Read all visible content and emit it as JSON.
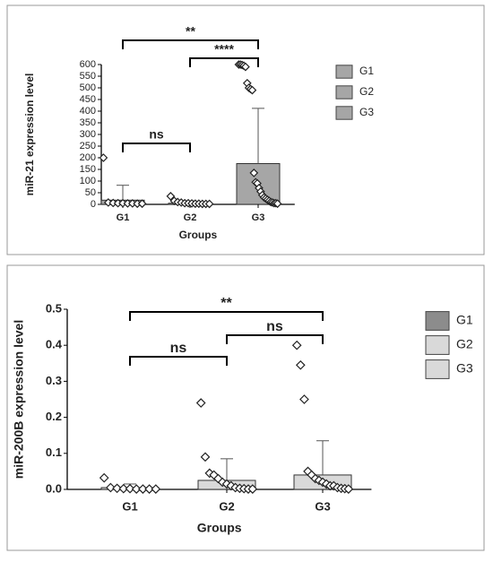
{
  "chart_data": [
    {
      "type": "bar",
      "ylabel": "miR-21 expression level",
      "xlabel": "Groups",
      "categories": [
        "G1",
        "G2",
        "G3"
      ],
      "values": [
        18,
        5,
        175
      ],
      "errors": [
        64,
        10,
        237
      ],
      "points": [
        [
          200,
          8,
          6,
          5,
          5,
          4,
          4,
          3,
          3
        ],
        [
          35,
          15,
          10,
          8,
          5,
          5,
          4,
          3,
          3,
          2,
          2,
          2
        ],
        [
          600,
          600,
          598,
          595,
          590,
          520,
          500,
          495,
          490,
          135,
          95,
          90,
          70,
          55,
          40,
          30,
          25,
          20,
          15,
          10,
          8,
          5,
          5,
          3
        ]
      ],
      "color": "#a6a6a6",
      "legend_colors": [
        "#a6a6a6",
        "#a6a6a6",
        "#a6a6a6"
      ],
      "ylim": [
        0,
        600
      ],
      "yticks": [
        0,
        50,
        100,
        150,
        200,
        250,
        300,
        350,
        400,
        450,
        500,
        550,
        600
      ],
      "annotations": [
        {
          "text": "**",
          "groups": [
            "G1",
            "G3"
          ]
        },
        {
          "text": "****",
          "groups": [
            "G2",
            "G3"
          ]
        },
        {
          "text": "ns",
          "groups": [
            "G1",
            "G2"
          ]
        }
      ]
    },
    {
      "type": "bar",
      "ylabel": "miR-200B expression level",
      "xlabel": "Groups",
      "categories": [
        "G1",
        "G2",
        "G3"
      ],
      "values": [
        0.005,
        0.025,
        0.04
      ],
      "errors": [
        0.01,
        0.06,
        0.095
      ],
      "points": [
        [
          0.032,
          0.005,
          0.003,
          0.002,
          0.002,
          0.001,
          0.001,
          0.001,
          0.001
        ],
        [
          0.24,
          0.09,
          0.045,
          0.04,
          0.03,
          0.02,
          0.015,
          0.01,
          0.005,
          0.003,
          0.002,
          0.001,
          0.001
        ],
        [
          0.4,
          0.345,
          0.25,
          0.05,
          0.04,
          0.03,
          0.025,
          0.02,
          0.015,
          0.01,
          0.01,
          0.005,
          0.003,
          0.002,
          0.001
        ]
      ],
      "color": "#d9d9d9",
      "legend_colors": [
        "#8c8c8c",
        "#d9d9d9",
        "#d9d9d9"
      ],
      "ylim": [
        0,
        0.5
      ],
      "yticks": [
        {
          "value": 0,
          "label": "0.0"
        },
        0.1,
        0.2,
        0.3,
        0.4,
        0.5
      ],
      "annotations": [
        {
          "text": "**",
          "groups": [
            "G1",
            "G3"
          ]
        },
        {
          "text": "ns",
          "groups": [
            "G1",
            "G2"
          ]
        },
        {
          "text": "ns",
          "groups": [
            "G2",
            "G3"
          ]
        }
      ]
    }
  ]
}
